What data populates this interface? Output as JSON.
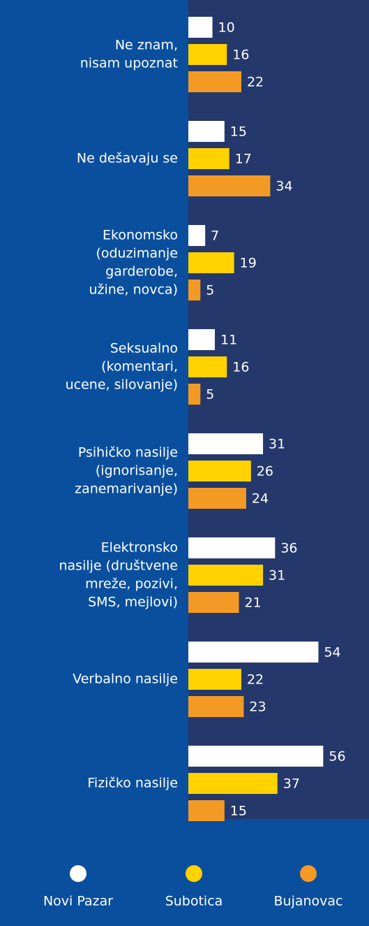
{
  "chart_data": {
    "type": "bar",
    "orientation": "horizontal",
    "categories": [
      [
        "Ne znam,",
        "nisam upoznat"
      ],
      [
        "Ne dešavaju se"
      ],
      [
        "Ekonomsko",
        "(oduzimanje",
        "garderobe,",
        "užine, novca)"
      ],
      [
        "Seksualno",
        "(komentari,",
        "ucene, silovanje)"
      ],
      [
        "Psihičko nasilje",
        "(ignorisanje,",
        "zanemarivanje)"
      ],
      [
        "Elektronsko",
        "nasilje (društvene",
        "mreže, pozivi,",
        "SMS, mejlovi)"
      ],
      [
        "Verbalno nasilje"
      ],
      [
        "Fizičko nasilje"
      ]
    ],
    "series": [
      {
        "name": "Novi Pazar",
        "color": "#ffffff",
        "values": [
          10,
          15,
          7,
          11,
          31,
          36,
          54,
          56
        ]
      },
      {
        "name": "Subotica",
        "color": "#ffd200",
        "values": [
          16,
          17,
          19,
          16,
          26,
          31,
          22,
          37
        ]
      },
      {
        "name": "Bujanovac",
        "color": "#f39a25",
        "values": [
          22,
          34,
          5,
          5,
          24,
          21,
          23,
          15
        ]
      }
    ],
    "xlim": [
      0,
      75
    ]
  }
}
